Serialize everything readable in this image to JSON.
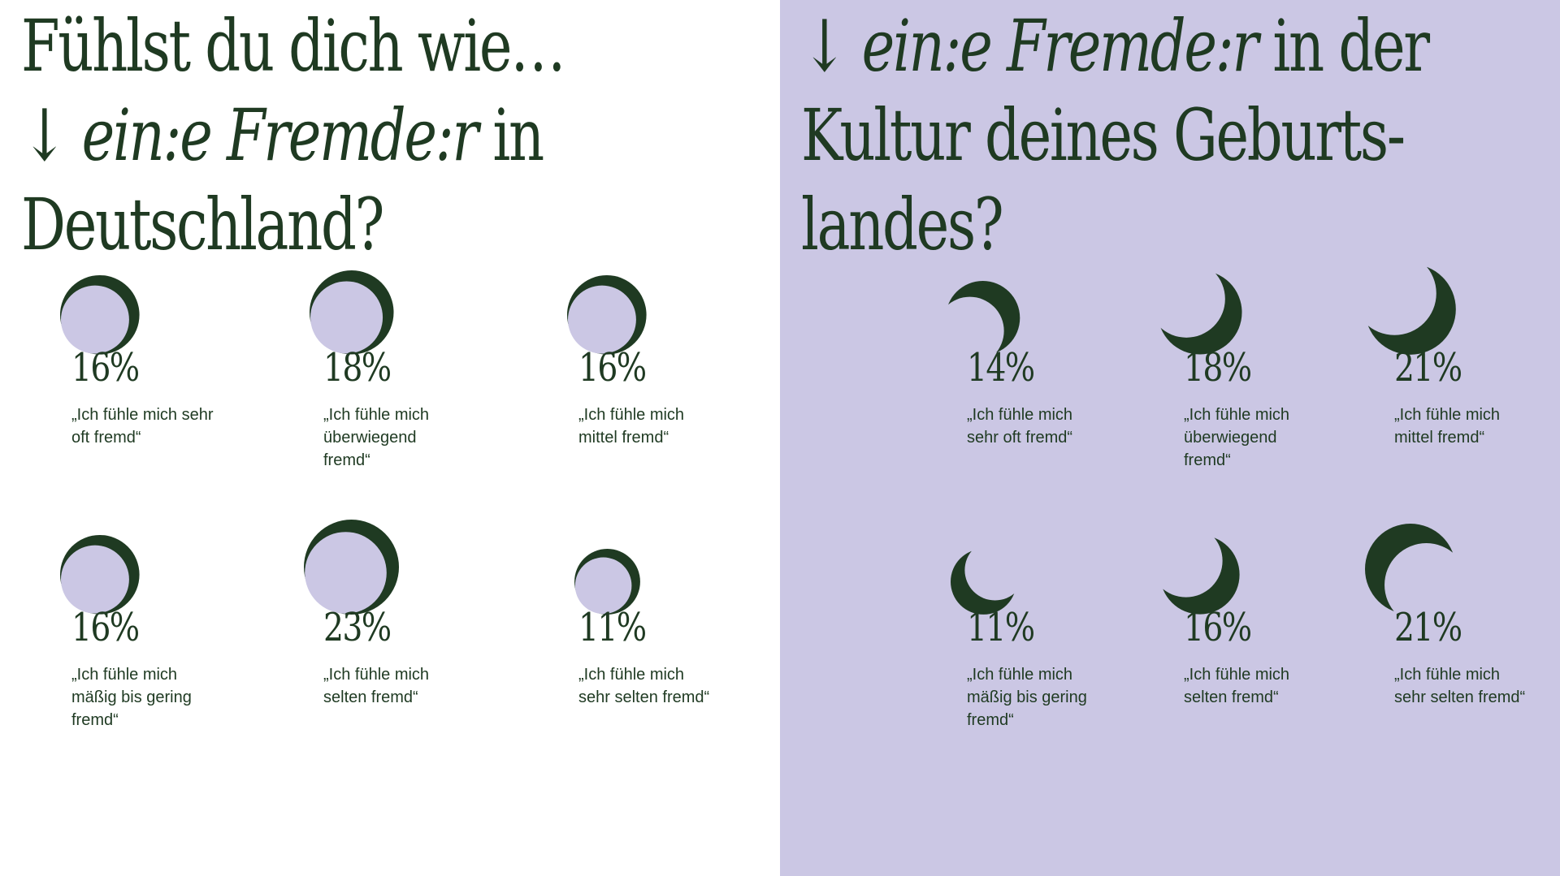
{
  "colors": {
    "dark_green": "#1f3a22",
    "lavender": "#cbc7e4",
    "white": "#ffffff"
  },
  "left": {
    "title_line1": "Fühlst du dich wie…",
    "title_arrow": "↓",
    "title_italic": "ein:e Fremde:r",
    "title_after": "in",
    "title_line3": "Deutschland?"
  },
  "right": {
    "title_arrow": "↓",
    "title_italic": "ein:e Fremde:r",
    "title_after": "in der",
    "title_line2": "Kultur deines Geburts-",
    "title_line3": "landes?"
  },
  "chart_data": [
    {
      "type": "bar",
      "encoding": "dark circle area with lavender full-moon overlay",
      "title": "Fühlst du dich wie… ein:e Fremde:r in Deutschland?",
      "categories": [
        "„Ich fühle mich sehr oft fremd“",
        "„Ich fühle mich überwiegend fremd“",
        "„Ich fühle mich mittel fremd“",
        "„Ich fühle mich mäßig bis gering fremd“",
        "„Ich fühle mich selten fremd“",
        "„Ich fühle mich sehr selten fremd“"
      ],
      "values": [
        16,
        18,
        16,
        16,
        23,
        11
      ],
      "value_labels": [
        "16%",
        "18%",
        "16%",
        "16%",
        "23%",
        "11%"
      ],
      "caption_lines": [
        [
          "„Ich fühle mich sehr",
          "oft fremd“"
        ],
        [
          "„Ich fühle mich",
          "überwiegend",
          "fremd“"
        ],
        [
          "„Ich fühle mich",
          "mittel fremd“"
        ],
        [
          "„Ich fühle mich",
          "mäßig bis gering",
          "fremd“"
        ],
        [
          "„Ich fühle mich",
          "selten fremd“"
        ],
        [
          "„Ich fühle mich",
          "sehr selten fremd“"
        ]
      ]
    },
    {
      "type": "bar",
      "encoding": "dark crescent-moon size",
      "title": "ein:e Fremde:r in der Kultur deines Geburtslandes?",
      "categories": [
        "„Ich fühle mich sehr oft fremd“",
        "„Ich fühle mich überwiegend fremd“",
        "„Ich fühle mich mittel fremd“",
        "„Ich fühle mich mäßig bis gering fremd“",
        "„Ich fühle mich selten fremd“",
        "„Ich fühle mich sehr selten fremd“"
      ],
      "values": [
        14,
        18,
        21,
        11,
        16,
        21
      ],
      "value_labels": [
        "14%",
        "18%",
        "21%",
        "11%",
        "16%",
        "21%"
      ],
      "caption_lines": [
        [
          "„Ich fühle mich",
          "sehr oft fremd“"
        ],
        [
          "„Ich fühle mich",
          "überwiegend",
          "fremd“"
        ],
        [
          "„Ich fühle mich",
          "mittel fremd“"
        ],
        [
          "„Ich fühle mich",
          "mäßig bis gering",
          "fremd“"
        ],
        [
          "„Ich fühle mich",
          "selten fremd“"
        ],
        [
          "„Ich fühle mich",
          "sehr selten fremd“"
        ]
      ]
    }
  ]
}
